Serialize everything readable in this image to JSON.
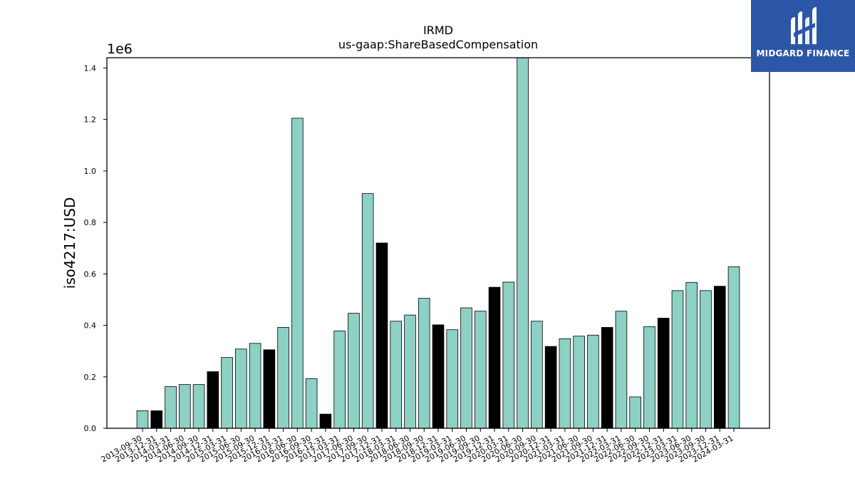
{
  "chart_data": {
    "type": "bar",
    "title": "IRMD",
    "subtitle": "us-gaap:ShareBasedCompensation",
    "ylabel": "iso4217:USD",
    "xlabel": "",
    "y_multiplier_label": "1e6",
    "ylim": [
      0,
      1.44
    ],
    "yticks": [
      0.0,
      0.2,
      0.4,
      0.6,
      0.8,
      1.0,
      1.2,
      1.4
    ],
    "ytick_labels": [
      "0.0",
      "0.2",
      "0.4",
      "0.6",
      "0.8",
      "1.0",
      "1.2",
      "1.4"
    ],
    "categories": [
      "2013-09-30",
      "2013-12-31",
      "2014-03-31",
      "2014-06-30",
      "2014-09-30",
      "2014-12-31",
      "2015-03-31",
      "2015-06-30",
      "2015-09-30",
      "2015-12-31",
      "2016-03-31",
      "2016-06-30",
      "2016-09-30",
      "2016-12-31",
      "2017-03-31",
      "2017-06-30",
      "2017-09-30",
      "2017-12-31",
      "2018-03-31",
      "2018-06-30",
      "2018-09-30",
      "2018-12-31",
      "2019-03-31",
      "2019-06-30",
      "2019-09-30",
      "2019-12-31",
      "2020-03-31",
      "2020-06-30",
      "2020-09-30",
      "2020-12-31",
      "2021-03-31",
      "2021-06-30",
      "2021-09-30",
      "2021-12-31",
      "2022-03-31",
      "2022-06-30",
      "2022-09-30",
      "2022-12-31",
      "2023-03-31",
      "2023-06-30",
      "2023-09-30",
      "2023-12-31",
      "2024-03-31"
    ],
    "values": [
      0.068,
      0.068,
      0.162,
      0.17,
      0.17,
      0.22,
      0.275,
      0.308,
      0.33,
      0.305,
      0.392,
      1.205,
      0.193,
      0.055,
      0.378,
      0.447,
      0.912,
      0.72,
      0.416,
      0.44,
      0.505,
      0.402,
      0.383,
      0.468,
      0.455,
      0.548,
      0.568,
      1.44,
      0.416,
      0.318,
      0.348,
      0.358,
      0.362,
      0.392,
      0.455,
      0.122,
      0.395,
      0.428,
      0.535,
      0.567,
      0.535,
      0.552,
      0.628
    ],
    "bar_colors": [
      "#8dd0c4",
      "#000000",
      "#8dd0c4",
      "#8dd0c4",
      "#8dd0c4",
      "#000000",
      "#8dd0c4",
      "#8dd0c4",
      "#8dd0c4",
      "#000000",
      "#8dd0c4",
      "#8dd0c4",
      "#8dd0c4",
      "#000000",
      "#8dd0c4",
      "#8dd0c4",
      "#8dd0c4",
      "#000000",
      "#8dd0c4",
      "#8dd0c4",
      "#8dd0c4",
      "#000000",
      "#8dd0c4",
      "#8dd0c4",
      "#8dd0c4",
      "#000000",
      "#8dd0c4",
      "#8dd0c4",
      "#8dd0c4",
      "#000000",
      "#8dd0c4",
      "#8dd0c4",
      "#8dd0c4",
      "#000000",
      "#8dd0c4",
      "#8dd0c4",
      "#8dd0c4",
      "#000000",
      "#8dd0c4",
      "#8dd0c4",
      "#8dd0c4",
      "#000000",
      "#8dd0c4"
    ],
    "grid": false,
    "legend": "none"
  },
  "colors": {
    "teal": "#8dd0c4",
    "black": "#000000",
    "brand_blue": "#2c57a8"
  },
  "logo": {
    "text": "MIDGARD FINANCE",
    "icon": "midgard-monogram-icon"
  }
}
